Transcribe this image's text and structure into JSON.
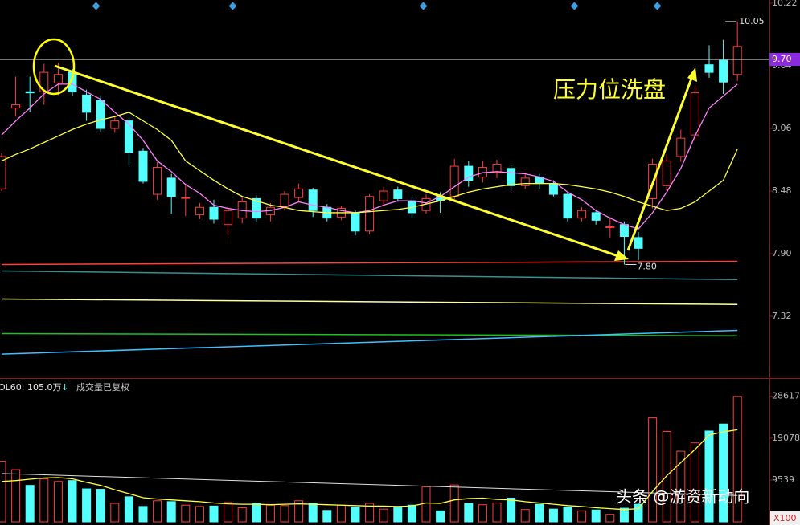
{
  "chart_data": {
    "type": "candlestick",
    "up_color": "#ff3c3c",
    "down_color": "#54ffff",
    "open": [
      8.5,
      9.25,
      9.4,
      9.4,
      9.48,
      9.58,
      9.37,
      9.32,
      9.06,
      9.13,
      8.85,
      8.45,
      8.6,
      8.42,
      8.26,
      8.33,
      8.17,
      8.23,
      8.41,
      8.26,
      8.34,
      8.42,
      8.49,
      8.33,
      8.24,
      8.28,
      8.11,
      8.39,
      8.49,
      8.39,
      8.3,
      8.43,
      8.43,
      8.71,
      8.61,
      8.65,
      8.69,
      8.53,
      8.61,
      8.55,
      8.45,
      8.23,
      8.28,
      8.15,
      8.17,
      8.05,
      8.41,
      8.53,
      8.8,
      9.0,
      9.65,
      9.69,
      9.56
    ],
    "high": [
      8.83,
      9.54,
      9.54,
      9.66,
      9.67,
      9.61,
      9.42,
      9.36,
      9.18,
      9.16,
      8.88,
      8.75,
      8.64,
      8.55,
      8.37,
      8.4,
      8.34,
      8.42,
      8.44,
      8.37,
      8.48,
      8.55,
      8.51,
      8.36,
      8.34,
      8.3,
      8.45,
      8.52,
      8.52,
      8.42,
      8.45,
      8.47,
      8.78,
      8.76,
      8.76,
      8.77,
      8.72,
      8.65,
      8.64,
      8.58,
      8.47,
      8.33,
      8.31,
      8.24,
      8.2,
      8.1,
      8.78,
      8.82,
      9.05,
      9.46,
      9.83,
      9.88,
      10.05
    ],
    "low": [
      8.48,
      9.17,
      9.21,
      9.28,
      9.37,
      9.36,
      9.13,
      9.03,
      9.02,
      8.72,
      8.55,
      8.4,
      8.27,
      8.25,
      8.22,
      8.18,
      8.07,
      8.18,
      8.19,
      8.2,
      8.3,
      8.38,
      8.24,
      8.2,
      8.21,
      8.07,
      8.08,
      8.35,
      8.38,
      8.23,
      8.27,
      8.28,
      8.4,
      8.52,
      8.56,
      8.6,
      8.48,
      8.5,
      8.5,
      8.43,
      8.2,
      8.2,
      8.17,
      8.05,
      7.8,
      7.84,
      8.32,
      8.48,
      8.75,
      8.95,
      9.53,
      9.38,
      9.5
    ],
    "close": [
      8.8,
      9.28,
      9.39,
      9.58,
      9.56,
      9.4,
      9.21,
      9.06,
      9.13,
      8.84,
      8.57,
      8.7,
      8.43,
      8.42,
      8.33,
      8.22,
      8.3,
      8.38,
      8.23,
      8.33,
      8.45,
      8.5,
      8.3,
      8.23,
      8.32,
      8.11,
      8.43,
      8.48,
      8.41,
      8.28,
      8.41,
      8.39,
      8.71,
      8.58,
      8.7,
      8.73,
      8.53,
      8.6,
      8.55,
      8.45,
      8.23,
      8.3,
      8.21,
      8.15,
      8.06,
      7.95,
      8.73,
      8.76,
      8.97,
      9.39,
      9.58,
      9.49,
      9.82
    ],
    "ma_lines": [
      {
        "color": "#ff80ff",
        "values": [
          9.0,
          9.13,
          9.25,
          9.38,
          9.47,
          9.47,
          9.4,
          9.33,
          9.21,
          9.1,
          8.95,
          8.76,
          8.66,
          8.54,
          8.46,
          8.35,
          8.32,
          8.3,
          8.29,
          8.3,
          8.33,
          8.38,
          8.35,
          8.33,
          8.3,
          8.28,
          8.3,
          8.35,
          8.39,
          8.39,
          8.37,
          8.43,
          8.52,
          8.61,
          8.65,
          8.66,
          8.65,
          8.64,
          8.61,
          8.57,
          8.47,
          8.4,
          8.3,
          8.23,
          8.17,
          8.13,
          8.28,
          8.47,
          8.69,
          8.99,
          9.25,
          9.36,
          9.47
        ]
      },
      {
        "color": "#ffff40",
        "values": [
          8.76,
          8.82,
          8.87,
          8.93,
          8.99,
          9.05,
          9.1,
          9.14,
          9.17,
          9.21,
          9.13,
          9.05,
          8.95,
          8.76,
          8.67,
          8.58,
          8.5,
          8.43,
          8.39,
          8.35,
          8.33,
          8.3,
          8.29,
          8.28,
          8.28,
          8.28,
          8.29,
          8.3,
          8.31,
          8.33,
          8.36,
          8.39,
          8.43,
          8.47,
          8.5,
          8.52,
          8.54,
          8.55,
          8.55,
          8.55,
          8.54,
          8.52,
          8.5,
          8.47,
          8.43,
          8.38,
          8.34,
          8.3,
          8.32,
          8.38,
          8.48,
          8.58,
          8.87
        ]
      }
    ],
    "long_lines": [
      {
        "color": "#ff4040",
        "values": [
          7.8,
          7.83
        ]
      },
      {
        "color": "#3a8f8f",
        "values": [
          7.74,
          7.66
        ]
      },
      {
        "color": "#ffffa0",
        "values": [
          7.48,
          7.43
        ]
      },
      {
        "color": "#20c020",
        "values": [
          7.16,
          7.14
        ]
      },
      {
        "color": "#40c0ff",
        "values": [
          6.97,
          7.19
        ]
      }
    ],
    "ylim": [
      6.77,
      10.25
    ],
    "yticks": [
      10.22,
      9.64,
      9.06,
      8.48,
      {
        "value": 7.9,
        "label": "7.90"
      },
      7.32
    ],
    "current_price": {
      "value": 9.7,
      "label": "9.70"
    },
    "high_label": 10.05,
    "low_label": {
      "value": 7.8,
      "label": "7.80"
    },
    "annotation": "压力位洗盘",
    "volume": [
      13800,
      11900,
      8300,
      9800,
      9200,
      9400,
      7500,
      7400,
      4200,
      5700,
      3500,
      4800,
      4600,
      3800,
      3500,
      3600,
      4400,
      3200,
      4200,
      3800,
      3700,
      4800,
      4200,
      2600,
      3800,
      3300,
      4200,
      2900,
      3200,
      3800,
      8000,
      2500,
      8400,
      4200,
      3900,
      4300,
      5400,
      2800,
      4000,
      2900,
      3300,
      2500,
      2700,
      1700,
      3100,
      4000,
      23700,
      20600,
      16100,
      18000,
      20700,
      22300,
      28600
    ],
    "volume_ma": {
      "color": "#ffff40",
      "values": [
        9200,
        9400,
        9700,
        10000,
        10100,
        9800,
        9000,
        8300,
        7300,
        6400,
        5500,
        5200,
        5000,
        4800,
        4600,
        4300,
        4100,
        4000,
        4000,
        3900,
        4000,
        4100,
        4000,
        3900,
        3800,
        3700,
        3600,
        3600,
        3500,
        3600,
        4300,
        4200,
        5000,
        5300,
        5400,
        5100,
        5000,
        4600,
        4300,
        4000,
        3700,
        3500,
        3200,
        3000,
        2800,
        3000,
        6900,
        10500,
        13500,
        16500,
        19800,
        20500,
        21000
      ]
    },
    "volume_long": {
      "color": "#e0e0e0",
      "values": [
        11000,
        6000
      ]
    },
    "volume_ylim": [
      0,
      31500
    ],
    "volume_yticks": [
      28617,
      19078,
      9539
    ],
    "volume_header": "OL60: 105.0万",
    "volume_arrow": "↓",
    "volume_note": "成交量已复权",
    "volume_unit": "X100",
    "watermark": "头条 @游资新动向"
  }
}
